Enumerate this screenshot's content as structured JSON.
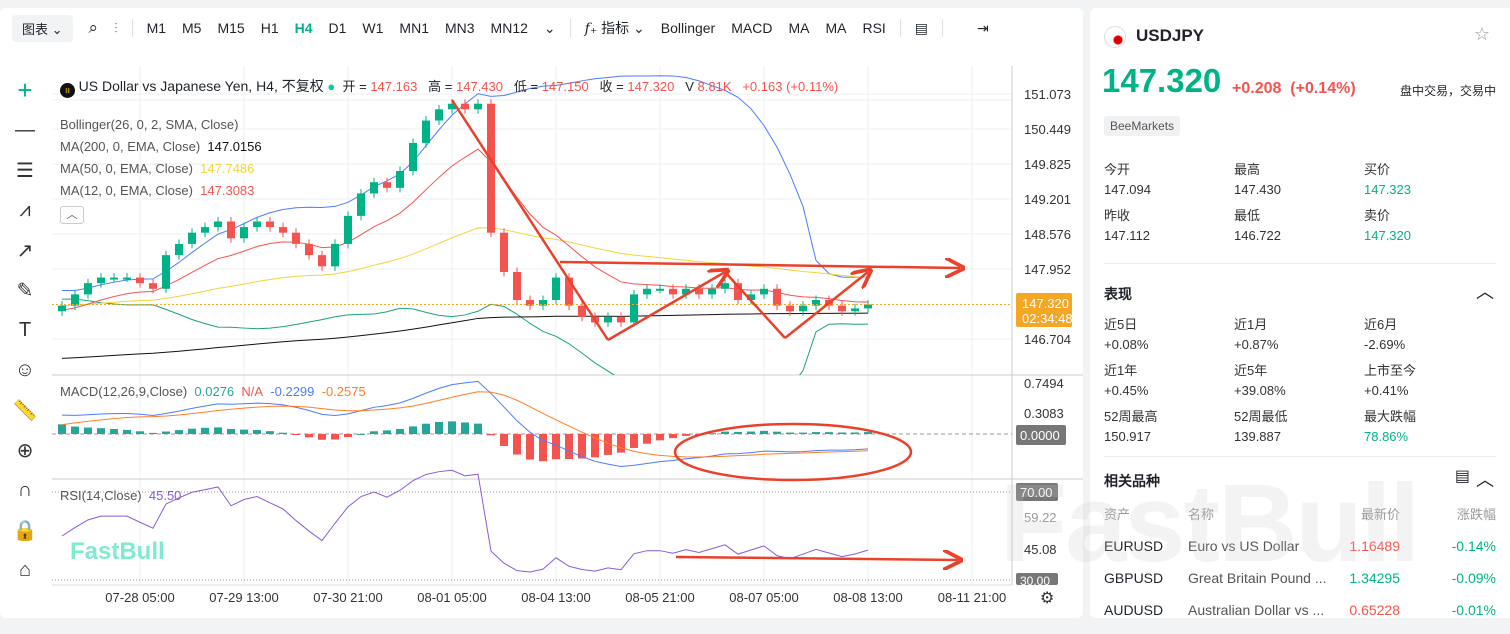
{
  "toolbar": {
    "chart_type": "图表",
    "intervals": [
      "M1",
      "M5",
      "M15",
      "H1",
      "H4",
      "D1",
      "W1",
      "MN1",
      "MN3",
      "MN12"
    ],
    "active_interval": "H4",
    "indicators_label": "指标",
    "indicator_shortcuts": [
      "Bollinger",
      "MACD",
      "MA",
      "MA",
      "RSI"
    ]
  },
  "legend": {
    "title": "US Dollar vs Japanese Yen, H4, 不复权",
    "open_label": "开 =",
    "open": "147.163",
    "high_label": "高 =",
    "high": "147.430",
    "low_label": "低 =",
    "low": "147.150",
    "close_label": "收 =",
    "close": "147.320",
    "volume_label": "V",
    "volume": "8.81K",
    "change": "+0.163 (+0.11%)",
    "bollinger": "Bollinger(26, 0, 2, SMA, Close)",
    "ma200": "MA(200, 0, EMA, Close)",
    "ma200_val": "147.0156",
    "ma50": "MA(50, 0, EMA, Close)",
    "ma50_val": "147.7486",
    "ma12": "MA(12, 0, EMA, Close)",
    "ma12_val": "147.3083",
    "macd": "MACD(12,26,9,Close)",
    "macd_hist": "0.0276",
    "macd_na": "N/A",
    "macd_line": "-0.2299",
    "macd_signal": "-0.2575",
    "rsi": "RSI(14,Close)",
    "rsi_val": "45.50"
  },
  "price_axis": {
    "ticks": [
      "151.073",
      "150.449",
      "149.825",
      "149.201",
      "148.576",
      "147.952",
      "146.704"
    ],
    "current": "147.320",
    "countdown": "02:34:48",
    "macd_ticks": [
      "0.7494",
      "0.3083"
    ],
    "macd_zero": "0.0000",
    "rsi_ticks": [
      "59.22",
      "45.08"
    ],
    "rsi_70": "70.00",
    "rsi_30": "30.00"
  },
  "time_axis": [
    "07-28 05:00",
    "07-29 13:00",
    "07-30 21:00",
    "08-01 05:00",
    "08-04 13:00",
    "08-05 21:00",
    "08-07 05:00",
    "08-08 13:00",
    "08-11 21:00"
  ],
  "colors": {
    "up": "#00b386",
    "down": "#f5534f",
    "bb": "#4d7cfe",
    "ma200": "#111111",
    "ma50": "#f2d43c",
    "ma12": "#f5534f",
    "macd": "#4d7cfe",
    "signal": "#ff7f27",
    "rsi": "#8b5bd6",
    "annotation": "#e8412c",
    "current": "#f5a623"
  },
  "chart_data": {
    "type": "candlestick",
    "closes": [
      147.3,
      147.5,
      147.7,
      147.8,
      147.8,
      147.8,
      147.7,
      147.6,
      148.2,
      148.4,
      148.6,
      148.7,
      148.8,
      148.5,
      148.7,
      148.8,
      148.7,
      148.6,
      148.4,
      148.2,
      148.0,
      148.4,
      148.9,
      149.3,
      149.5,
      149.4,
      149.7,
      150.2,
      150.6,
      150.8,
      150.9,
      150.8,
      150.9,
      148.6,
      147.9,
      147.4,
      147.3,
      147.4,
      147.8,
      147.3,
      147.1,
      147.0,
      147.1,
      147.0,
      147.5,
      147.6,
      147.6,
      147.5,
      147.6,
      147.5,
      147.6,
      147.7,
      147.4,
      147.5,
      147.6,
      147.3,
      147.2,
      147.3,
      147.4,
      147.3,
      147.2,
      147.25,
      147.32
    ],
    "ylim": [
      146.3,
      151.4
    ]
  },
  "watermark": "FastBull",
  "right": {
    "symbol": "USDJPY",
    "price": "147.320",
    "change": "+0.208",
    "change_pct": "(+0.14%)",
    "status": "盘中交易，交易中",
    "broker": "BeeMarkets",
    "stats": [
      {
        "label": "今开",
        "value": "147.094"
      },
      {
        "label": "最高",
        "value": "147.430"
      },
      {
        "label": "买价",
        "value": "147.323"
      },
      {
        "label": "昨收",
        "value": "147.112"
      },
      {
        "label": "最低",
        "value": "146.722"
      },
      {
        "label": "卖价",
        "value": "147.320"
      }
    ],
    "perf_title": "表现",
    "perf": [
      {
        "label": "近5日",
        "value": "+0.08%"
      },
      {
        "label": "近1月",
        "value": "+0.87%"
      },
      {
        "label": "近6月",
        "value": "-2.69%"
      },
      {
        "label": "近1年",
        "value": "+0.45%"
      },
      {
        "label": "近5年",
        "value": "+39.08%"
      },
      {
        "label": "上市至今",
        "value": "+0.41%"
      },
      {
        "label": "52周最高",
        "value": "150.917"
      },
      {
        "label": "52周最低",
        "value": "139.887"
      },
      {
        "label": "最大跌幅",
        "value": "78.86%"
      }
    ],
    "related_title": "相关品种",
    "related_headers": [
      "资产",
      "名称",
      "最新价",
      "涨跌幅"
    ],
    "related": [
      {
        "asset": "EURUSD",
        "name": "Euro vs US Dollar",
        "price": "1.16489",
        "chg": "-0.14%"
      },
      {
        "asset": "GBPUSD",
        "name": "Great Britain Pound ...",
        "price": "1.34295",
        "chg": "-0.09%"
      },
      {
        "asset": "AUDUSD",
        "name": "Australian Dollar vs ...",
        "price": "0.65228",
        "chg": "-0.01%"
      }
    ]
  }
}
